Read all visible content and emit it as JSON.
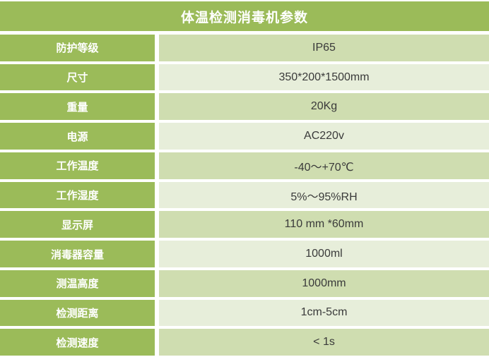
{
  "header": {
    "title": "体温检测消毒机参数"
  },
  "table": {
    "rows": [
      {
        "label": "防护等级",
        "value": "IP65"
      },
      {
        "label": "尺寸",
        "value": "350*200*1500mm"
      },
      {
        "label": "重量",
        "value": "20Kg"
      },
      {
        "label": "电源",
        "value": "AC220v"
      },
      {
        "label": "工作温度",
        "value": "-40～+70℃"
      },
      {
        "label": "工作湿度",
        "value": "5%～95%RH"
      },
      {
        "label": "显示屏",
        "value": "110 mm *60mm"
      },
      {
        "label": "消毒器容量",
        "value": "1000ml"
      },
      {
        "label": "测温高度",
        "value": "1000mm"
      },
      {
        "label": "检测距离",
        "value": "1cm-5cm"
      },
      {
        "label": "检测速度",
        "value": "< 1s"
      }
    ]
  },
  "colors": {
    "header_green": "#9BBB59",
    "band_dark": "#CFDDB0",
    "band_light": "#E7EEDA",
    "grid_white": "#FFFFFF",
    "value_text": "#3A3A3A",
    "label_text": "#FFFFFF"
  }
}
